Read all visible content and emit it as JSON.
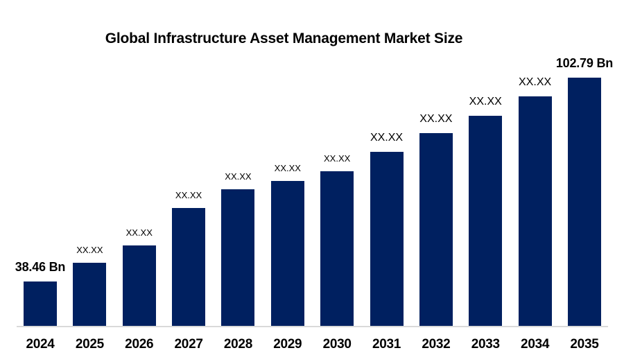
{
  "chart_data": {
    "type": "bar",
    "title": "Global Infrastructure Asset Management Market Size",
    "unit": "Bn",
    "xlabel": "",
    "ylabel": "",
    "grid": false,
    "legend": "none",
    "categories": [
      "2024",
      "2025",
      "2026",
      "2027",
      "2028",
      "2029",
      "2030",
      "2031",
      "2032",
      "2033",
      "2034",
      "2035"
    ],
    "values": [
      38.46,
      44.37,
      49.84,
      61.65,
      67.56,
      70.19,
      73.25,
      79.38,
      85.28,
      90.75,
      96.88,
      102.79
    ],
    "value_labels": [
      "38.46 Bn",
      "XX.XX",
      "XX.XX",
      "XX.XX",
      "XX.XX",
      "XX.XX",
      "XX.XX",
      "XX.XX",
      "XX.XX",
      "XX.XX",
      "XX.XX",
      "102.79 Bn"
    ],
    "known_values_note": "Only 2024 (38.46 Bn) and 2035 (102.79 Bn) are labeled; intermediate bars are masked as XX.XX and their values are estimated from bar heights.",
    "bars": [
      {
        "year": "2024",
        "display_label": "38.46 Bn",
        "est_value": 38.46,
        "label_style": "bold"
      },
      {
        "year": "2025",
        "display_label": "XX.XX",
        "est_value": 44.37,
        "label_style": "small"
      },
      {
        "year": "2026",
        "display_label": "XX.XX",
        "est_value": 49.84,
        "label_style": "small"
      },
      {
        "year": "2027",
        "display_label": "XX.XX",
        "est_value": 61.65,
        "label_style": "small"
      },
      {
        "year": "2028",
        "display_label": "XX.XX",
        "est_value": 67.56,
        "label_style": "small"
      },
      {
        "year": "2029",
        "display_label": "XX.XX",
        "est_value": 70.19,
        "label_style": "small"
      },
      {
        "year": "2030",
        "display_label": "XX.XX",
        "est_value": 73.25,
        "label_style": "small"
      },
      {
        "year": "2031",
        "display_label": "XX.XX",
        "est_value": 79.38,
        "label_style": "large"
      },
      {
        "year": "2032",
        "display_label": "XX.XX",
        "est_value": 85.28,
        "label_style": "large"
      },
      {
        "year": "2033",
        "display_label": "XX.XX",
        "est_value": 90.75,
        "label_style": "large"
      },
      {
        "year": "2034",
        "display_label": "XX.XX",
        "est_value": 96.88,
        "label_style": "large"
      },
      {
        "year": "2035",
        "display_label": "102.79 Bn",
        "est_value": 102.79,
        "label_style": "bold"
      }
    ]
  },
  "colors": {
    "bar": "#002060",
    "axis_line": "#d9d9d9",
    "text": "#000000",
    "background": "#ffffff"
  }
}
